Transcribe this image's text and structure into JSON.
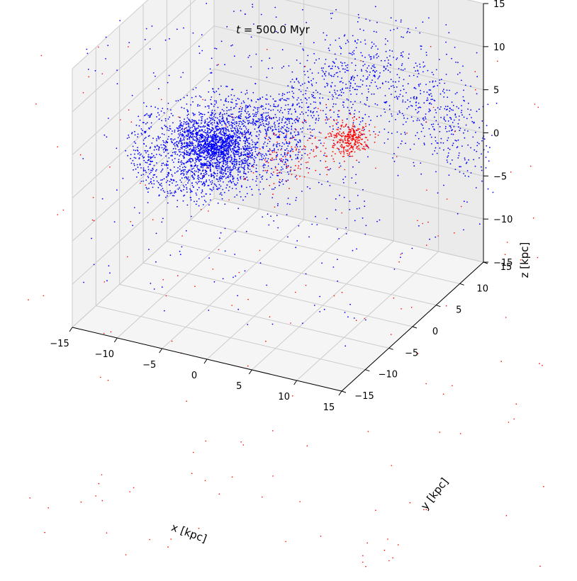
{
  "chart_data": {
    "type": "scatter",
    "title": "t = 500.0 Myr",
    "title_var": "t",
    "title_rest": " = 500.0 Myr",
    "projection": "3d",
    "xlabel": "x [kpc]",
    "ylabel": "y [kpc]",
    "zlabel": "z [kpc]",
    "xlim": [
      -15,
      15
    ],
    "ylim": [
      -15,
      15
    ],
    "zlim": [
      -15,
      15
    ],
    "xticks": [
      "−15",
      "−10",
      "−5",
      "0",
      "5",
      "10",
      "15"
    ],
    "yticks": [
      "−15",
      "−10",
      "−5",
      "0",
      "5",
      "10",
      "15"
    ],
    "zticks": [
      "−15",
      "−10",
      "−5",
      "0",
      "5",
      "10",
      "15"
    ],
    "grid": true,
    "legend": false,
    "series": [
      {
        "color": "#0000ff",
        "description": "disk galaxy particles",
        "center": [
          -6.5,
          -1.0,
          1.0
        ],
        "disk_radius": 9,
        "extended_arm_to": [
          14,
          6
        ]
      },
      {
        "color": "#ff0000",
        "description": "satellite particles",
        "center": [
          6.0,
          4.0,
          2.5
        ],
        "spread": 1.5
      }
    ]
  }
}
